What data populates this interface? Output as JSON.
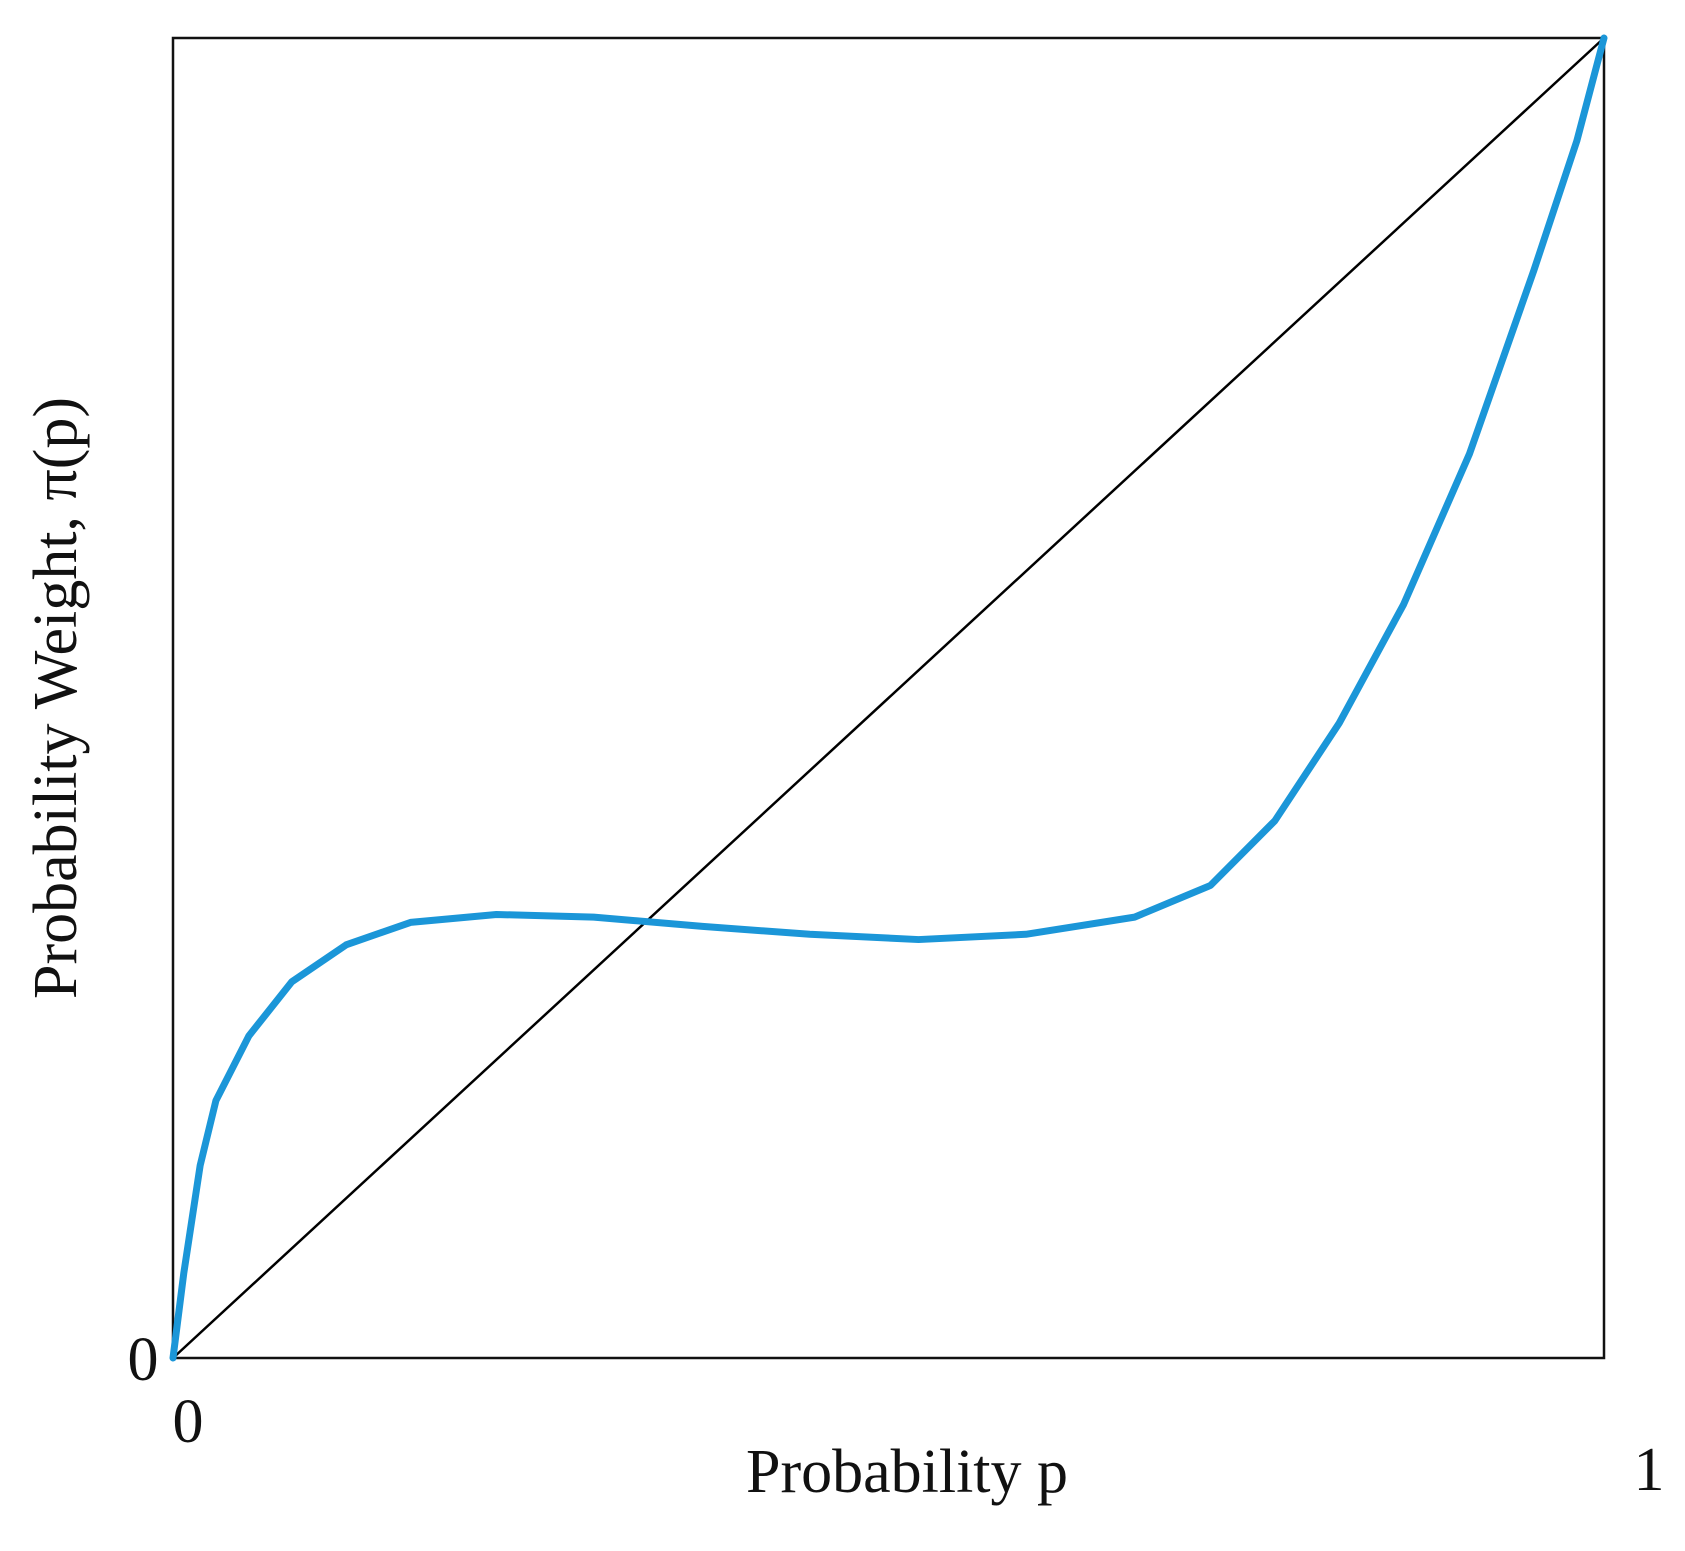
{
  "chart_data": {
    "type": "line",
    "x_label": "Probability p",
    "y_label": "Probability Weight, π(p)",
    "xlim": [
      0,
      1
    ],
    "ylim": [
      0,
      1
    ],
    "xticks": [
      0,
      1
    ],
    "yticks": [
      0
    ],
    "series": [
      {
        "color": "#000000",
        "x": [
          0,
          1
        ],
        "values": [
          0,
          1
        ]
      },
      {
        "color": "#1b96d8",
        "x": [
          0,
          0.0075,
          0.019,
          0.03,
          0.053,
          0.083,
          0.121,
          0.166,
          0.226,
          0.294,
          0.37,
          0.445,
          0.521,
          0.596,
          0.672,
          0.725,
          0.77,
          0.815,
          0.86,
          0.906,
          0.951,
          0.981,
          1
        ],
        "values": [
          0,
          0.064,
          0.146,
          0.195,
          0.244,
          0.285,
          0.313,
          0.33,
          0.336,
          0.334,
          0.327,
          0.321,
          0.317,
          0.321,
          0.334,
          0.358,
          0.407,
          0.481,
          0.571,
          0.685,
          0.824,
          0.922,
          1
        ]
      }
    ]
  }
}
